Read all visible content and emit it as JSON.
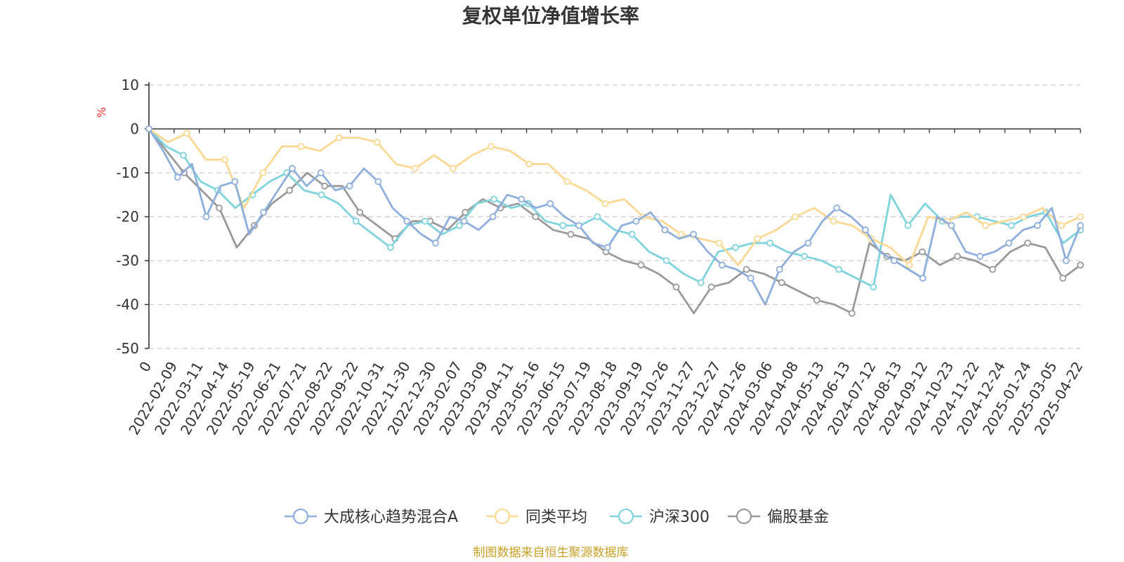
{
  "chart_data": {
    "type": "line",
    "title": "复权单位净值增长率",
    "ylabel": "%",
    "ylim": [
      -50,
      10
    ],
    "yticks": [
      10,
      0,
      -10,
      -20,
      -30,
      -40,
      -50
    ],
    "grid": true,
    "legend_position": "bottom",
    "x_tick_labels": [
      "0",
      "2022-02-09",
      "2022-03-11",
      "2022-04-14",
      "2022-05-19",
      "2022-06-21",
      "2022-07-21",
      "2022-08-22",
      "2022-09-22",
      "2022-10-31",
      "2022-11-30",
      "2022-12-30",
      "2023-02-07",
      "2023-03-09",
      "2023-04-11",
      "2023-05-16",
      "2023-06-15",
      "2023-07-19",
      "2023-08-18",
      "2023-09-19",
      "2023-10-26",
      "2023-11-27",
      "2023-12-27",
      "2024-01-26",
      "2024-03-06",
      "2024-04-08",
      "2024-05-13",
      "2024-06-13",
      "2024-07-12",
      "2024-08-13",
      "2024-09-12",
      "2024-10-23",
      "2024-11-22",
      "2024-12-24",
      "2025-01-24",
      "2025-03-05",
      "2025-04-22"
    ],
    "series": [
      {
        "name": "大成核心趋势混合A",
        "color": "#8eaedc",
        "values": [
          0,
          -5,
          -11,
          -8,
          -20,
          -13,
          -12,
          -24,
          -19,
          -14,
          -9,
          -13,
          -10,
          -14,
          -13,
          -9,
          -12,
          -18,
          -21,
          -24,
          -26,
          -20,
          -21,
          -23,
          -20,
          -15,
          -16,
          -18,
          -17,
          -20,
          -22,
          -26,
          -27,
          -22,
          -21,
          -19,
          -23,
          -25,
          -24,
          -28,
          -31,
          -32,
          -34,
          -40,
          -32,
          -28,
          -26,
          -21,
          -18,
          -20,
          -23,
          -28,
          -30,
          -32,
          -34,
          -20,
          -22,
          -28,
          -29,
          -28,
          -26,
          -23,
          -22,
          -18,
          -30,
          -22
        ]
      },
      {
        "name": "同类平均",
        "color": "#fbd893",
        "values": [
          0,
          -3,
          -1,
          -7,
          -7,
          -18,
          -10,
          -4,
          -4,
          -5,
          -2,
          -2,
          -3,
          -8,
          -9,
          -6,
          -9,
          -6,
          -4,
          -5,
          -8,
          -8,
          -12,
          -14,
          -17,
          -16,
          -20,
          -21,
          -24,
          -25,
          -26,
          -31,
          -25,
          -23,
          -20,
          -18,
          -21,
          -22,
          -25,
          -27,
          -31,
          -20,
          -21,
          -19,
          -22,
          -21,
          -20,
          -18,
          -22,
          -20
        ]
      },
      {
        "name": "沪深300",
        "color": "#7fd3dc",
        "values": [
          0,
          -4,
          -6,
          -12,
          -14,
          -18,
          -15,
          -12,
          -10,
          -14,
          -15,
          -17,
          -21,
          -24,
          -27,
          -22,
          -21,
          -24,
          -22,
          -17,
          -16,
          -18,
          -17,
          -21,
          -22,
          -22,
          -20,
          -23,
          -24,
          -28,
          -30,
          -33,
          -35,
          -28,
          -27,
          -26,
          -26,
          -28,
          -29,
          -30,
          -32,
          -34,
          -36,
          -15,
          -22,
          -17,
          -21,
          -20,
          -20,
          -21,
          -22,
          -20,
          -19,
          -26,
          -23
        ]
      },
      {
        "name": "偏股基金",
        "color": "#9a9a9a",
        "values": [
          0,
          -5,
          -10,
          -14,
          -18,
          -27,
          -22,
          -17,
          -14,
          -10,
          -13,
          -13,
          -19,
          -22,
          -25,
          -21,
          -21,
          -23,
          -19,
          -16,
          -18,
          -17,
          -20,
          -23,
          -24,
          -25,
          -28,
          -30,
          -31,
          -33,
          -36,
          -42,
          -36,
          -35,
          -32,
          -33,
          -35,
          -37,
          -39,
          -40,
          -42,
          -26,
          -29,
          -30,
          -28,
          -31,
          -29,
          -30,
          -32,
          -28,
          -26,
          -27,
          -34,
          -31
        ]
      }
    ]
  },
  "source_note": "制图数据来自恒生聚源数据库"
}
